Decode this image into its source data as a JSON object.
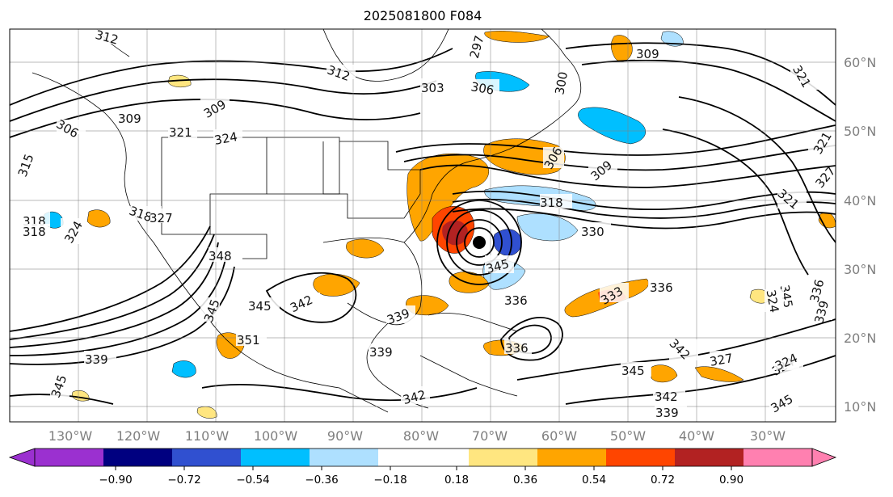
{
  "title": "2025081800 F084",
  "map": {
    "lon_labels": [
      "130°W",
      "120°W",
      "110°W",
      "100°W",
      "90°W",
      "80°W",
      "70°W",
      "60°W",
      "50°W",
      "40°W",
      "30°W"
    ],
    "lat_labels": [
      "60°N",
      "50°N",
      "40°N",
      "30°N",
      "20°N",
      "10°N"
    ],
    "contour_labels": [
      "312",
      "312",
      "309",
      "309",
      "306",
      "303",
      "306",
      "300",
      "309",
      "297",
      "321",
      "321",
      "324",
      "309",
      "306",
      "321",
      "327",
      "318",
      "315",
      "324",
      "324",
      "318",
      "318",
      "330",
      "321",
      "318",
      "327",
      "348",
      "345",
      "342",
      "345",
      "333",
      "336",
      "336",
      "339",
      "339",
      "351",
      "345",
      "339",
      "345",
      "342",
      "339",
      "336",
      "345",
      "345",
      "342",
      "342",
      "327",
      "324",
      "339",
      "336",
      "345",
      "324"
    ]
  },
  "colorbar": {
    "ticks": [
      "−0.90",
      "−0.72",
      "−0.54",
      "−0.36",
      "−0.18",
      "0.18",
      "0.36",
      "0.54",
      "0.72",
      "0.90"
    ],
    "colors": [
      "#9b30d0",
      "#000080",
      "#3050d0",
      "#00bfff",
      "#aee0ff",
      "#ffffff",
      "#ffe680",
      "#ffa500",
      "#ff4500",
      "#b22222",
      "#ff80b0"
    ]
  }
}
